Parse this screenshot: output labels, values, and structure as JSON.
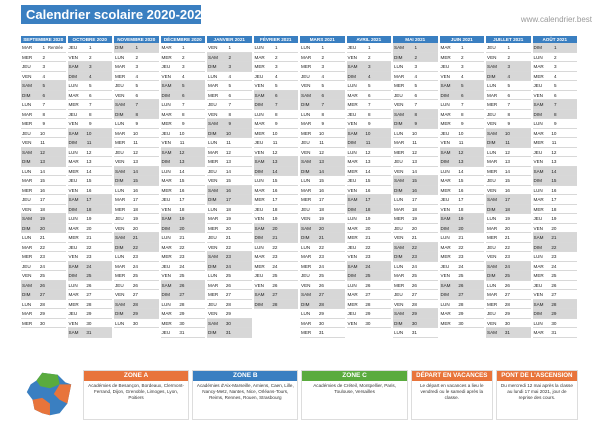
{
  "title": "Calendrier scolaire 2020-2021",
  "site": "www.calendrier.best",
  "months": [
    {
      "name": "SEPTEMBRE 2020",
      "start": 2,
      "len": 30
    },
    {
      "name": "OCTOBRE 2020",
      "start": 4,
      "len": 31
    },
    {
      "name": "NOVEMBRE 2020",
      "start": 0,
      "len": 30
    },
    {
      "name": "DÉCEMBRE 2020",
      "start": 2,
      "len": 31
    },
    {
      "name": "JANVIER 2021",
      "start": 5,
      "len": 31
    },
    {
      "name": "FÉVRIER 2021",
      "start": 1,
      "len": 28
    },
    {
      "name": "MARS 2021",
      "start": 1,
      "len": 31
    },
    {
      "name": "AVRIL 2021",
      "start": 4,
      "len": 30
    },
    {
      "name": "MAI 2021",
      "start": 6,
      "len": 31
    },
    {
      "name": "JUIN 2021",
      "start": 2,
      "len": 30
    },
    {
      "name": "JUILLET 2021",
      "start": 4,
      "len": 31
    },
    {
      "name": "AOÛT 2021",
      "start": 0,
      "len": 31
    }
  ],
  "day_names": [
    "DIM",
    "LUN",
    "MAR",
    "MER",
    "JEU",
    "VEN",
    "SAM"
  ],
  "event_rentree": "Rentrée",
  "legend": {
    "zone_a": {
      "title": "ZONE A",
      "text": "Académies de Besançon, Bordeaux, Clermont-Ferrand, Dijon, Grenoble, Limoges, Lyon, Poitiers"
    },
    "zone_b": {
      "title": "ZONE B",
      "text": "Académies d'Aix-Marseille, Amiens, Caen, Lille, Nancy-Metz, Nantes, Nice, Orléans-Tours, Reims, Rennes, Rouen, Strasbourg"
    },
    "zone_c": {
      "title": "ZONE C",
      "text": "Académies de Créteil, Montpellier, Paris, Toulouse, Versailles"
    },
    "depart": {
      "title": "DÉPART EN VACANCES",
      "text": "Le départ en vacances a lieu le vendredi ou le samedi après la classe."
    },
    "pont": {
      "title": "PONT DE L'ASCENSION",
      "text": "Du mercredi 12 mai après la classe au lundi 17 mai 2021, jour de reprise des cours."
    }
  },
  "colors": {
    "header": "#3a7fc1",
    "zoneA": "#e8743b",
    "zoneB": "#3a7fc1",
    "zoneC": "#5aab3e",
    "weekend": "#d7d7d7"
  }
}
